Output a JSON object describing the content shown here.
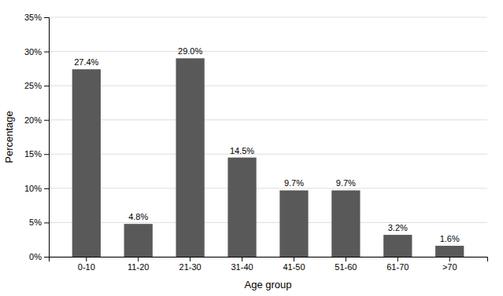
{
  "chart_data": {
    "type": "bar",
    "xlabel": "Age group",
    "ylabel": "Percentage",
    "categories": [
      "0-10",
      "11-20",
      "21-30",
      "31-40",
      "41-50",
      "51-60",
      "61-70",
      ">70"
    ],
    "values": [
      27.4,
      4.8,
      29.0,
      14.5,
      9.7,
      9.7,
      3.2,
      1.6
    ],
    "value_labels": [
      "27.4%",
      "4.8%",
      "29.0%",
      "14.5%",
      "9.7%",
      "9.7%",
      "3.2%",
      "1.6%"
    ],
    "data_labels": true,
    "color": "#595959",
    "ylim": [
      0,
      35
    ],
    "yticks": [
      {
        "value": 0,
        "label": "0%"
      },
      {
        "value": 5,
        "label": "5%"
      },
      {
        "value": 10,
        "label": "10%"
      },
      {
        "value": 15,
        "label": "15%"
      },
      {
        "value": 20,
        "label": "20%"
      },
      {
        "value": 25,
        "label": "25%"
      },
      {
        "value": 30,
        "label": "30%"
      },
      {
        "value": 35,
        "label": "35%"
      }
    ],
    "grid": true
  }
}
